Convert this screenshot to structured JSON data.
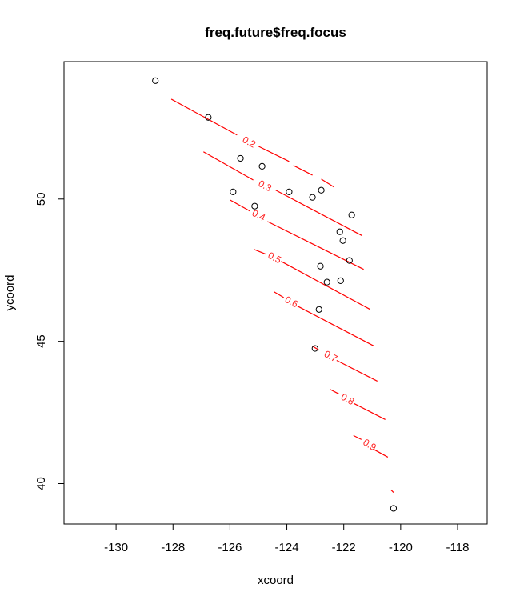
{
  "chart_data": {
    "type": "scatter",
    "title": "freq.future$freq.focus",
    "xlabel": "xcoord",
    "ylabel": "ycoord",
    "xlim": [
      -131.83,
      -116.96
    ],
    "ylim": [
      38.58,
      54.83
    ],
    "x_ticks": [
      -130,
      -128,
      -126,
      -124,
      -122,
      -120,
      -118
    ],
    "y_ticks": [
      40,
      45,
      50
    ],
    "grid": false,
    "legend": "none",
    "point_style": "open-circle",
    "colors": {
      "contour": "#ff0000",
      "contour_label": "#ff2222",
      "points": "#000000",
      "frame": "#000000"
    },
    "points": [
      [
        -128.62,
        54.16
      ],
      [
        -126.76,
        52.87
      ],
      [
        -125.63,
        51.43
      ],
      [
        -124.87,
        51.15
      ],
      [
        -125.89,
        50.25
      ],
      [
        -123.92,
        50.25
      ],
      [
        -123.1,
        50.06
      ],
      [
        -122.79,
        50.31
      ],
      [
        -125.13,
        49.75
      ],
      [
        -121.72,
        49.44
      ],
      [
        -122.14,
        48.85
      ],
      [
        -122.03,
        48.54
      ],
      [
        -121.8,
        47.84
      ],
      [
        -122.82,
        47.64
      ],
      [
        -122.59,
        47.08
      ],
      [
        -122.11,
        47.13
      ],
      [
        -122.87,
        46.12
      ],
      [
        -123.01,
        44.75
      ],
      [
        -120.25,
        39.13
      ]
    ],
    "contours": [
      {
        "level": "0.2",
        "label": "0.2",
        "label_pos": [
          -125.38,
          52.02
        ],
        "segments": [
          [
            [
              -128.06,
              53.51
            ],
            [
              -125.75,
              52.25
            ]
          ],
          [
            [
              -124.99,
              51.85
            ],
            [
              -123.92,
              51.32
            ]
          ],
          [
            [
              -123.77,
              51.18
            ],
            [
              -123.1,
              50.84
            ]
          ],
          [
            [
              -122.79,
              50.7
            ],
            [
              -122.34,
              50.42
            ]
          ]
        ]
      },
      {
        "level": "0.3",
        "label": "0.3",
        "label_pos": [
          -124.82,
          50.48
        ],
        "segments": [
          [
            [
              -126.93,
              51.66
            ],
            [
              -125.18,
              50.67
            ]
          ],
          [
            [
              -124.39,
              50.31
            ],
            [
              -121.35,
              48.71
            ]
          ]
        ]
      },
      {
        "level": "0.4",
        "label": "0.4",
        "label_pos": [
          -125.04,
          49.44
        ],
        "segments": [
          [
            [
              -126.0,
              49.97
            ],
            [
              -125.3,
              49.58
            ]
          ],
          [
            [
              -124.68,
              49.21
            ],
            [
              -121.3,
              47.53
            ]
          ]
        ]
      },
      {
        "level": "0.5",
        "label": "0.5",
        "label_pos": [
          -124.48,
          47.95
        ],
        "segments": [
          [
            [
              -125.15,
              48.23
            ],
            [
              -124.73,
              48.06
            ]
          ],
          [
            [
              -124.2,
              47.81
            ],
            [
              -121.07,
              46.12
            ]
          ]
        ]
      },
      {
        "level": "0.6",
        "label": "0.6",
        "label_pos": [
          -123.89,
          46.4
        ],
        "segments": [
          [
            [
              -124.45,
              46.74
            ],
            [
              -124.11,
              46.54
            ]
          ],
          [
            [
              -123.63,
              46.24
            ],
            [
              -120.93,
              44.83
            ]
          ]
        ]
      },
      {
        "level": "0.7",
        "label": "0.7",
        "label_pos": [
          -122.51,
          44.49
        ],
        "segments": [
          [
            [
              -123.1,
              44.83
            ],
            [
              -122.87,
              44.69
            ]
          ],
          [
            [
              -122.25,
              44.33
            ],
            [
              -120.82,
              43.6
            ]
          ]
        ]
      },
      {
        "level": "0.8",
        "label": "0.8",
        "label_pos": [
          -121.92,
          42.98
        ],
        "segments": [
          [
            [
              -122.48,
              43.31
            ],
            [
              -122.17,
              43.15
            ]
          ],
          [
            [
              -121.63,
              42.81
            ],
            [
              -120.54,
              42.25
            ]
          ]
        ]
      },
      {
        "level": "0.9",
        "label": "0.9",
        "label_pos": [
          -121.15,
          41.38
        ],
        "segments": [
          [
            [
              -121.66,
              41.69
            ],
            [
              -121.38,
              41.55
            ]
          ],
          [
            [
              -120.96,
              41.21
            ],
            [
              -120.45,
              40.93
            ]
          ]
        ]
      },
      {
        "level": "1",
        "label": null,
        "label_pos": null,
        "segments": [
          [
            [
              -120.34,
              39.78
            ],
            [
              -120.25,
              39.69
            ]
          ]
        ]
      }
    ]
  }
}
